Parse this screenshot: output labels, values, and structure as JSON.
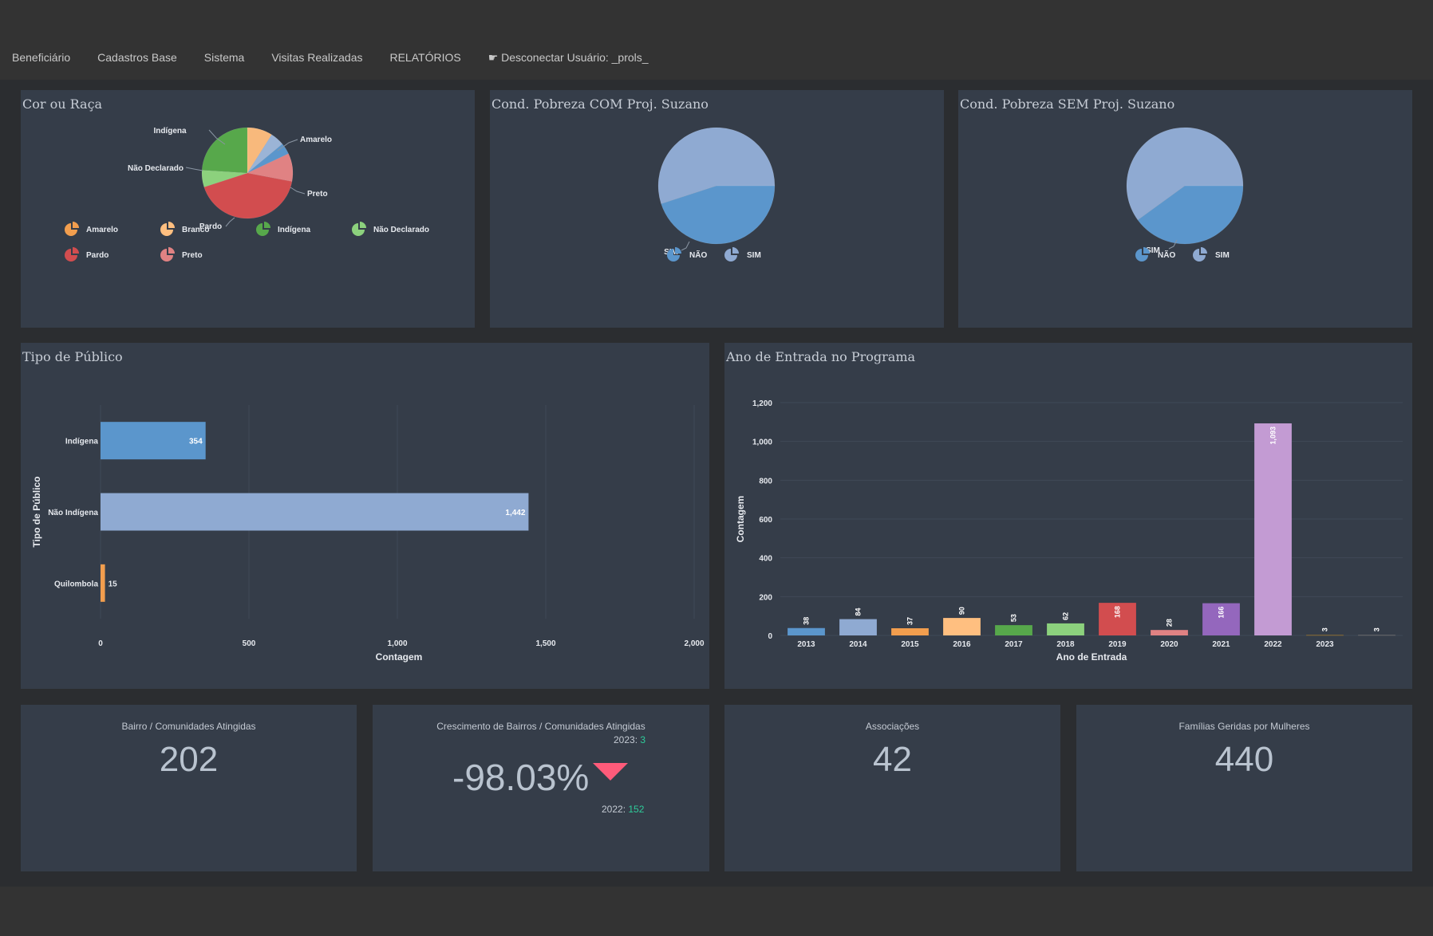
{
  "nav": {
    "items": [
      "Beneficiário",
      "Cadastros Base",
      "Sistema",
      "Visitas Realizadas",
      "RELATÓRIOS"
    ],
    "disconnect": "☛ Desconectar Usuário: _prols_"
  },
  "panels": {
    "race": {
      "title": "Cor ou Raça",
      "labels": [
        "Indígena",
        "Amarelo",
        "Não Declarado",
        "Preto",
        "Pardo"
      ],
      "legend": [
        "Amarelo",
        "Branco",
        "Indígena",
        "Não Declarado",
        "Pardo",
        "Preto"
      ],
      "colors": [
        "#f29e4e",
        "#ffbf80",
        "#57a84b",
        "#8cd17d",
        "#d24d4f",
        "#e08283"
      ]
    },
    "poverty_com": {
      "title": "Cond. Pobreza COM Proj. Suzano",
      "slice_label": "SIM",
      "legend": [
        "NÃO",
        "SIM"
      ]
    },
    "poverty_sem": {
      "title": "Cond. Pobreza SEM Proj. Suzano",
      "slice_label": "SIM",
      "legend": [
        "NÃO",
        "SIM"
      ]
    },
    "public_type": {
      "title": "Tipo de Público"
    },
    "entry_year": {
      "title": "Ano de Entrada no Programa"
    }
  },
  "kpis": {
    "neighborhoods": {
      "title": "Bairro / Comunidades Atingidas",
      "value": "202"
    },
    "growth": {
      "title": "Crescimento de Bairros / Comunidades Atingidas",
      "value": "-98.03%",
      "current_label": "2023:",
      "current_value": "3",
      "previous_label": "2022:",
      "previous_value": "152"
    },
    "associations": {
      "title": "Associações",
      "value": "42"
    },
    "women_families": {
      "title": "Famílias Geridas por Mulheres",
      "value": "440"
    }
  },
  "chart_data": [
    {
      "type": "pie",
      "title": "Cor ou Raça",
      "slices": [
        {
          "label": "Amarelo",
          "value": 9,
          "color": "#f8b97c"
        },
        {
          "label": "Branco",
          "value": 5,
          "color": "#9bb4d6"
        },
        {
          "label": "",
          "value": 4,
          "color": "#5b96cc"
        },
        {
          "label": "Preto",
          "value": 10,
          "color": "#e08283"
        },
        {
          "label": "Pardo",
          "value": 42,
          "color": "#d24d4f"
        },
        {
          "label": "Não Declarado",
          "value": 6,
          "color": "#8cd17d"
        },
        {
          "label": "Indígena",
          "value": 24,
          "color": "#57a84b"
        }
      ]
    },
    {
      "type": "pie",
      "title": "Cond. Pobreza COM Proj. Suzano",
      "slices": [
        {
          "label": "NÃO",
          "value": 45,
          "color": "#5b96cc"
        },
        {
          "label": "SIM",
          "value": 55,
          "color": "#8faad2"
        }
      ]
    },
    {
      "type": "pie",
      "title": "Cond. Pobreza SEM Proj. Suzano",
      "slices": [
        {
          "label": "NÃO",
          "value": 40,
          "color": "#5b96cc"
        },
        {
          "label": "SIM",
          "value": 60,
          "color": "#8faad2"
        }
      ]
    },
    {
      "type": "bar",
      "orientation": "horizontal",
      "title": "Tipo de Público",
      "categories": [
        "Indígena",
        "Não Indígena",
        "Quilombola"
      ],
      "values": [
        354,
        1442,
        15
      ],
      "colors": [
        "#5b96cc",
        "#8faad2",
        "#f29e4e"
      ],
      "xlabel": "Contagem",
      "ylabel": "Tipo de Público",
      "xlim": [
        0,
        2000
      ],
      "xticks": [
        0,
        500,
        1000,
        1500,
        2000
      ],
      "xtick_labels": [
        "0",
        "500",
        "1,000",
        "1,500",
        "2,000"
      ],
      "value_labels": [
        "354",
        "1,442",
        "15"
      ]
    },
    {
      "type": "bar",
      "title": "Ano de Entrada no Programa",
      "categories": [
        "2013",
        "2014",
        "2015",
        "2016",
        "2017",
        "2018",
        "2019",
        "2020",
        "2021",
        "2022",
        "2023",
        ""
      ],
      "values": [
        38,
        84,
        37,
        90,
        53,
        62,
        168,
        28,
        166,
        1093,
        3,
        3
      ],
      "value_labels": [
        "38",
        "84",
        "37",
        "90",
        "53",
        "62",
        "168",
        "28",
        "166",
        "1,093",
        "3",
        "3"
      ],
      "colors": [
        "#5b96cc",
        "#8faad2",
        "#f29e4e",
        "#ffbf80",
        "#57a84b",
        "#8cd17d",
        "#d24d4f",
        "#e08283",
        "#9467bd",
        "#c39bd3",
        "#8c6d31",
        "#6b6b6b"
      ],
      "xlabel": "Ano de Entrada",
      "ylabel": "Contagem",
      "ylim": [
        0,
        1200
      ],
      "yticks": [
        0,
        200,
        400,
        600,
        800,
        1000,
        1200
      ],
      "ytick_labels": [
        "0",
        "200",
        "400",
        "600",
        "800",
        "1,000",
        "1,200"
      ]
    }
  ]
}
